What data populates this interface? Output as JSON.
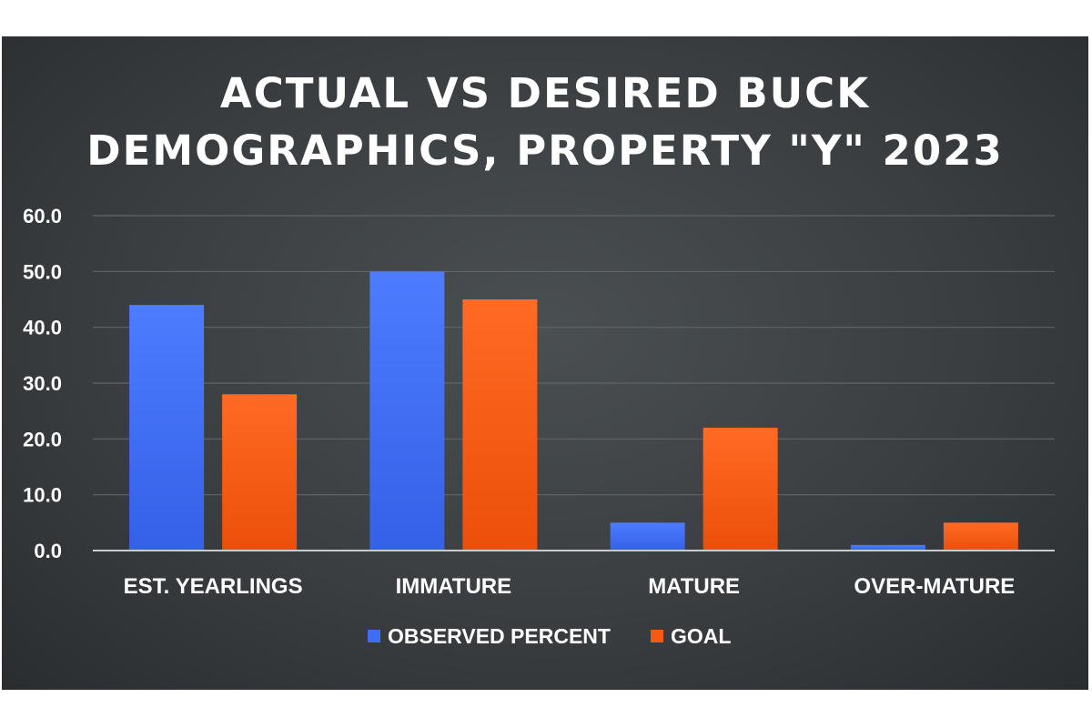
{
  "chart_data": {
    "type": "bar",
    "title": "ACTUAL VS DESIRED BUCK DEMOGRAPHICS, PROPERTY \"Y\" 2023",
    "title_lines": [
      "ACTUAL VS DESIRED BUCK",
      "DEMOGRAPHICS, PROPERTY \"Y\" 2023"
    ],
    "xlabel": "",
    "ylabel": "",
    "categories": [
      "EST. YEARLINGS",
      "IMMATURE",
      "MATURE",
      "OVER-MATURE"
    ],
    "series": [
      {
        "name": "OBSERVED PERCENT",
        "color": "#3f6ef5",
        "values": [
          44,
          50,
          5,
          1
        ]
      },
      {
        "name": "GOAL",
        "color": "#f55a14",
        "values": [
          28,
          45,
          22,
          5
        ]
      }
    ],
    "ylim": [
      0,
      60
    ],
    "yticks": [
      "0.0",
      "10.0",
      "20.0",
      "30.0",
      "40.0",
      "50.0",
      "60.0"
    ],
    "grid": true,
    "legend_position": "bottom",
    "background_color": "#3c4043"
  }
}
